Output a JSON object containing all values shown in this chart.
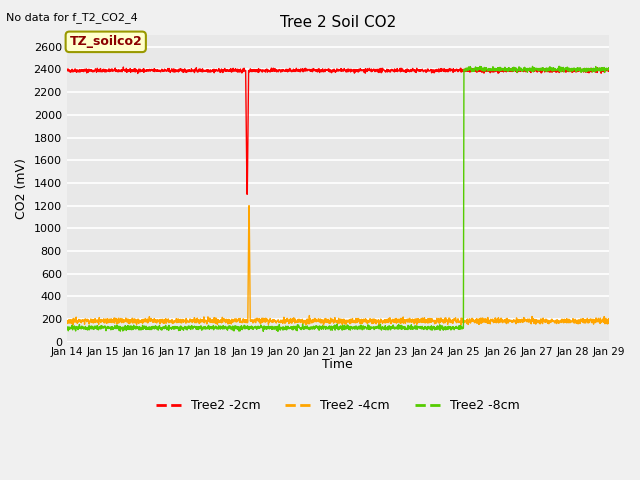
{
  "title": "Tree 2 Soil CO2",
  "no_data_text": "No data for f_T2_CO2_4",
  "ylabel": "CO2 (mV)",
  "xlabel": "Time",
  "annotation_box": "TZ_soilco2",
  "ylim": [
    0,
    2700
  ],
  "yticks": [
    0,
    200,
    400,
    600,
    800,
    1000,
    1200,
    1400,
    1600,
    1800,
    2000,
    2200,
    2400,
    2600
  ],
  "xlim_days": [
    0,
    15
  ],
  "xtick_labels": [
    "Jan 14",
    "Jan 15",
    "Jan 16",
    "Jan 17",
    "Jan 18",
    "Jan 19",
    "Jan 20",
    "Jan 21",
    "Jan 22",
    "Jan 23",
    "Jan 24",
    "Jan 25",
    "Jan 26",
    "Jan 27",
    "Jan 28",
    "Jan 29"
  ],
  "fig_bg_color": "#f0f0f0",
  "plot_bg_color": "#e8e8e8",
  "grid_color": "#ffffff",
  "series_red": {
    "label": "Tree2 -2cm",
    "color": "#ff0000",
    "base_value": 2390,
    "noise": 8,
    "spike_day": 5.0,
    "spike_min": 1300
  },
  "series_orange": {
    "label": "Tree2 -4cm",
    "color": "#ffa500",
    "base_value": 185,
    "noise": 12,
    "spike_day": 5.05,
    "spike_max": 1200
  },
  "series_green": {
    "label": "Tree2 -8cm",
    "color": "#55cc00",
    "base_value": 125,
    "noise": 10,
    "spike_day": 11.0,
    "spike_max": 2400
  }
}
